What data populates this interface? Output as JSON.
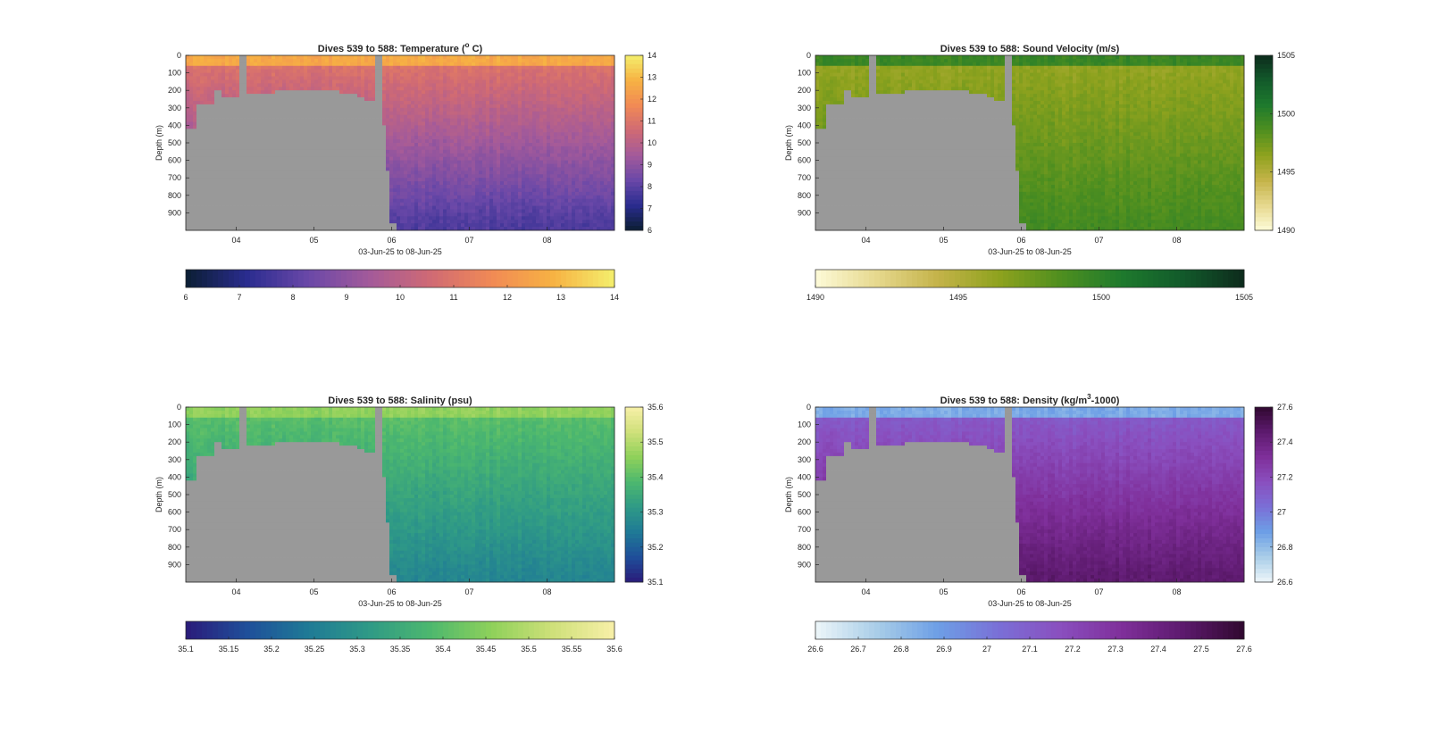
{
  "chart_data": [
    {
      "type": "heatmap",
      "title": "Dives 539 to 588: Temperature (° C)",
      "title_parts": {
        "prefix": "Dives 539 to 588: Temperature (",
        "sup": "o",
        "suffix": " C)"
      },
      "xlabel": "03-Jun-25 to 08-Jun-25",
      "ylabel": "Depth (m)",
      "x_ticks": [
        "04",
        "05",
        "06",
        "07",
        "08"
      ],
      "y_ticks": [
        "0",
        "100",
        "200",
        "300",
        "400",
        "500",
        "600",
        "700",
        "800",
        "900"
      ],
      "ylim": [
        0,
        1000
      ],
      "colormap": [
        "#0b1e33",
        "#2a2c8f",
        "#6a48a8",
        "#a35a9a",
        "#d06a74",
        "#f18a55",
        "#f7b243",
        "#f4ef6d"
      ],
      "clim": [
        6,
        14
      ],
      "vertical_colorbar_ticks": [
        "14",
        "13",
        "12",
        "11",
        "10",
        "9",
        "8",
        "7",
        "6"
      ],
      "horizontal_colorbar_ticks": [
        "6",
        "7",
        "8",
        "9",
        "10",
        "11",
        "12",
        "13",
        "14"
      ],
      "surface_value": 12.6,
      "mid_value": 10.9,
      "deep_value": 7.8
    },
    {
      "type": "heatmap",
      "title": "Dives 539 to 588: Sound Velocity (m/s)",
      "title_parts": {
        "prefix": "Dives 539 to 588: Sound Velocity (m/s)",
        "sup": "",
        "suffix": ""
      },
      "xlabel": "03-Jun-25 to 08-Jun-25",
      "ylabel": "Depth (m)",
      "x_ticks": [
        "04",
        "05",
        "06",
        "07",
        "08"
      ],
      "y_ticks": [
        "0",
        "100",
        "200",
        "300",
        "400",
        "500",
        "600",
        "700",
        "800",
        "900"
      ],
      "ylim": [
        0,
        1000
      ],
      "colormap": [
        "#fdfbd8",
        "#e6d88d",
        "#c4b349",
        "#8ea21e",
        "#4f8f1f",
        "#1e7a2d",
        "#125a2b",
        "#0d2b1c"
      ],
      "clim": [
        1490,
        1505
      ],
      "vertical_colorbar_ticks": [
        "1505",
        "1500",
        "1495",
        "1490"
      ],
      "horizontal_colorbar_ticks": [
        "1490",
        "1495",
        "1500",
        "1505"
      ],
      "surface_value": 1499.5,
      "mid_value": 1496.2,
      "deep_value": 1499.0
    },
    {
      "type": "heatmap",
      "title": "Dives 539 to 588: Salinity (psu)",
      "title_parts": {
        "prefix": "Dives 539 to 588: Salinity (psu)",
        "sup": "",
        "suffix": ""
      },
      "xlabel": "03-Jun-25 to 08-Jun-25",
      "ylabel": "Depth (m)",
      "x_ticks": [
        "04",
        "05",
        "06",
        "07",
        "08"
      ],
      "y_ticks": [
        "0",
        "100",
        "200",
        "300",
        "400",
        "500",
        "600",
        "700",
        "800",
        "900"
      ],
      "ylim": [
        0,
        1000
      ],
      "colormap": [
        "#2a1b7a",
        "#1f4f9a",
        "#1f7a96",
        "#2f9a86",
        "#4db86e",
        "#8fd15a",
        "#cfe07a",
        "#f8f0a8"
      ],
      "clim": [
        35.1,
        35.6
      ],
      "vertical_colorbar_ticks": [
        "35.6",
        "35.5",
        "35.4",
        "35.3",
        "35.2",
        "35.1"
      ],
      "horizontal_colorbar_ticks": [
        "35.1",
        "35.15",
        "35.2",
        "35.25",
        "35.3",
        "35.35",
        "35.4",
        "35.45",
        "35.5",
        "35.55",
        "35.6"
      ],
      "surface_value": 35.46,
      "mid_value": 35.4,
      "deep_value": 35.27
    },
    {
      "type": "heatmap",
      "title": "Dives 539 to 588: Density (kg/m³-1000)",
      "title_parts": {
        "prefix": "Dives 539 to 588: Density (kg/m",
        "sup": "3",
        "suffix": "-1000)"
      },
      "xlabel": "03-Jun-25 to 08-Jun-25",
      "ylabel": "Depth (m)",
      "x_ticks": [
        "04",
        "05",
        "06",
        "07",
        "08"
      ],
      "y_ticks": [
        "0",
        "100",
        "200",
        "300",
        "400",
        "500",
        "600",
        "700",
        "800",
        "900"
      ],
      "ylim": [
        0,
        1000
      ],
      "colormap": [
        "#edf6f9",
        "#a9cde8",
        "#6d9fe6",
        "#7a6fd6",
        "#8a4fbf",
        "#7f2f9a",
        "#5d1a6e",
        "#30082f"
      ],
      "clim": [
        26.6,
        27.6
      ],
      "vertical_colorbar_ticks": [
        "27.6",
        "27.4",
        "27.2",
        "27",
        "26.8",
        "26.6"
      ],
      "horizontal_colorbar_ticks": [
        "26.6",
        "26.7",
        "26.8",
        "26.9",
        "27",
        "27.1",
        "27.2",
        "27.3",
        "27.4",
        "27.5",
        "27.6"
      ],
      "surface_value": 26.85,
      "mid_value": 27.12,
      "deep_value": 27.45
    }
  ]
}
